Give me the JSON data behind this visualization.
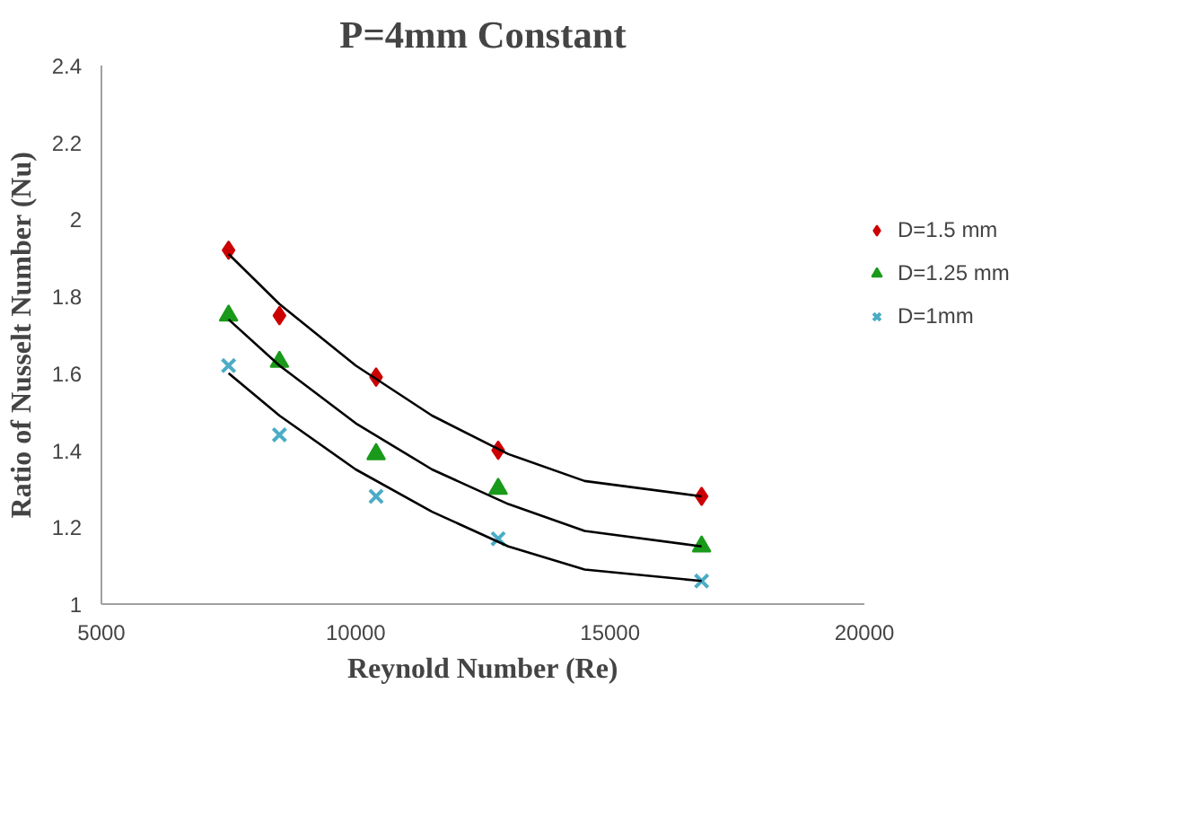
{
  "chart_data": {
    "type": "scatter",
    "title": "P=4mm Constant",
    "xlabel": "Reynold Number (Re)",
    "ylabel": "Ratio of Nusselt Number (Nu)",
    "xlim": [
      5000,
      20000
    ],
    "xticks": [
      5000,
      10000,
      15000,
      20000
    ],
    "ylim": [
      1,
      2.4
    ],
    "yticks": [
      1,
      1.2,
      1.4,
      1.6,
      1.8,
      2,
      2.2,
      2.4
    ],
    "grid": false,
    "legend": "right",
    "series": [
      {
        "name": "D=1.5 mm",
        "color": "#cc0000",
        "marker": "diamond",
        "x": [
          7500,
          8500,
          10400,
          12800,
          16800
        ],
        "values": [
          1.92,
          1.75,
          1.59,
          1.4,
          1.28
        ]
      },
      {
        "name": "D=1.25 mm",
        "color": "#1a9a1a",
        "marker": "triangle",
        "x": [
          7500,
          8500,
          10400,
          12800,
          16800
        ],
        "values": [
          1.75,
          1.63,
          1.39,
          1.3,
          1.15
        ]
      },
      {
        "name": "D=1mm",
        "color": "#4bacc6",
        "marker": "cross",
        "x": [
          7500,
          8500,
          10400,
          12800,
          16800
        ],
        "values": [
          1.62,
          1.44,
          1.28,
          1.17,
          1.06
        ]
      },
      {
        "type": "line",
        "color": "#000000",
        "marker": "none",
        "x": [
          7500,
          8500,
          10000,
          11500,
          13000,
          14500,
          16800
        ],
        "values": [
          1.91,
          1.78,
          1.62,
          1.49,
          1.39,
          1.32,
          1.28
        ]
      },
      {
        "type": "line",
        "color": "#000000",
        "marker": "none",
        "x": [
          7500,
          8500,
          10000,
          11500,
          13000,
          14500,
          16800
        ],
        "values": [
          1.74,
          1.62,
          1.47,
          1.35,
          1.26,
          1.19,
          1.15
        ]
      },
      {
        "type": "line",
        "color": "#000000",
        "marker": "none",
        "x": [
          7500,
          8500,
          10000,
          11500,
          13000,
          14500,
          16800
        ],
        "values": [
          1.6,
          1.49,
          1.35,
          1.24,
          1.15,
          1.09,
          1.06
        ]
      }
    ]
  }
}
